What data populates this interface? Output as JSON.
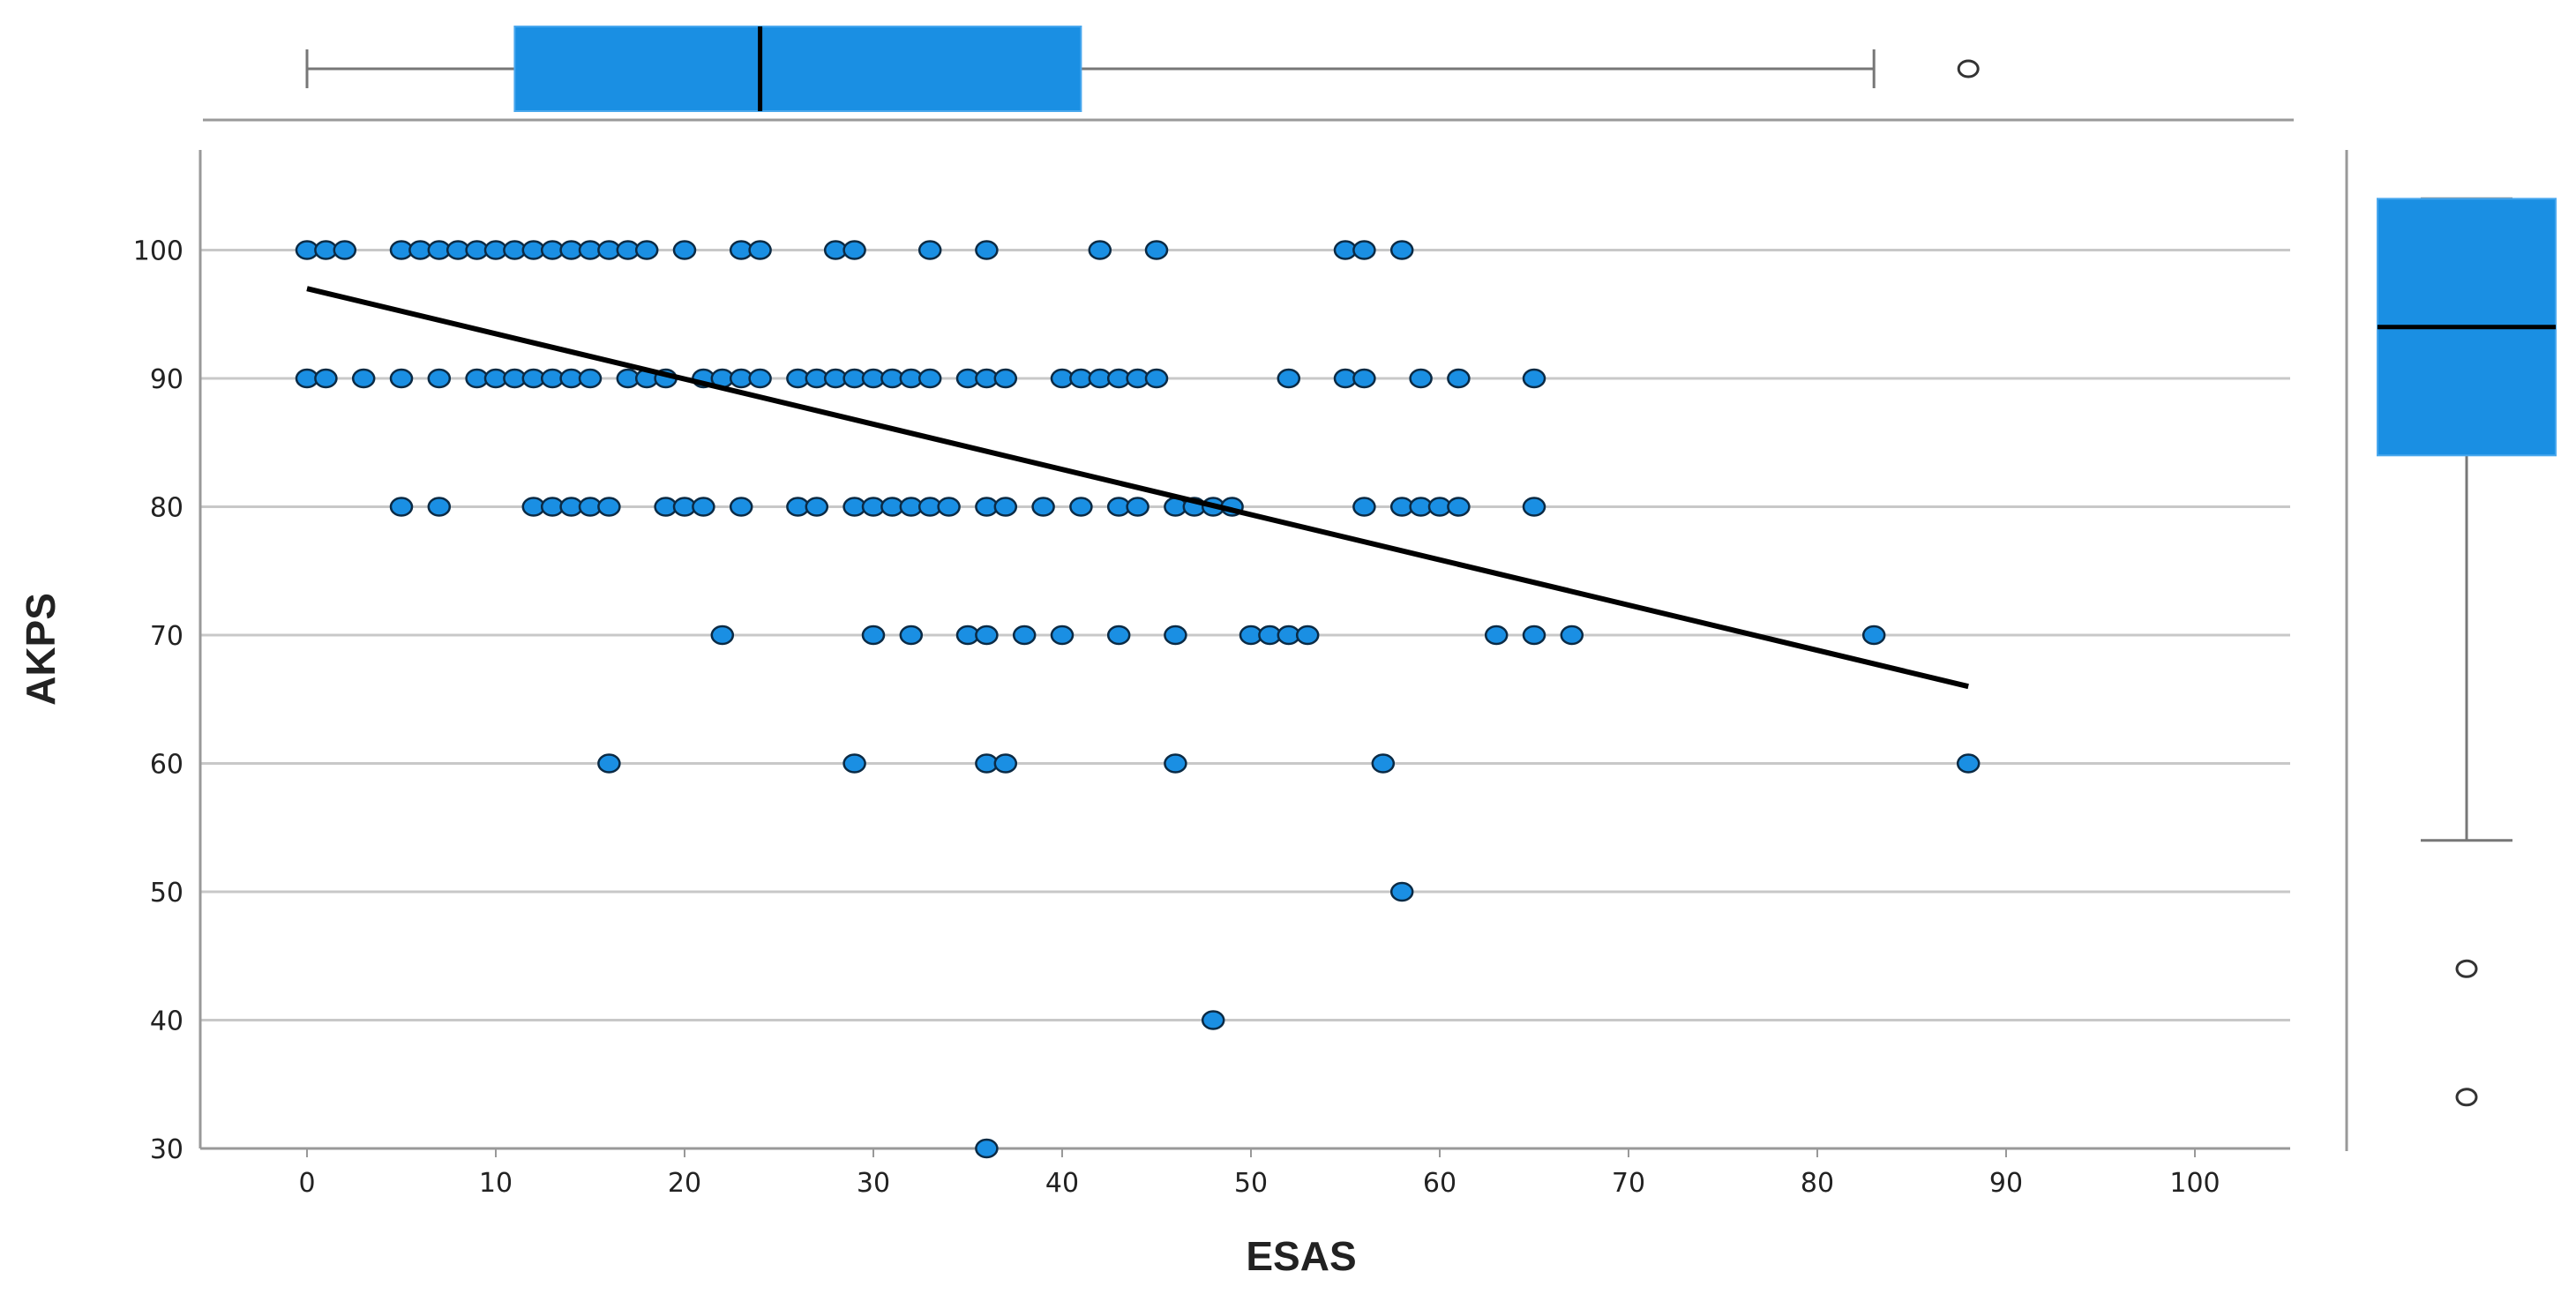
{
  "chart_data": {
    "type": "scatter",
    "xlabel": "ESAS",
    "ylabel": "AKPS",
    "xlim": [
      -11,
      100
    ],
    "ylim": [
      30,
      107
    ],
    "xticks": [
      0,
      10,
      20,
      30,
      40,
      50,
      60,
      70,
      80,
      90,
      100
    ],
    "yticks": [
      30,
      40,
      50,
      60,
      70,
      80,
      90,
      100
    ],
    "grid": "horizontal",
    "colors": {
      "point": "#1a8fe3",
      "box": "#1a8fe3",
      "line": "#000000",
      "grid": "#c8c8c8",
      "axis": "#999999"
    },
    "fit_line": {
      "x": [
        0,
        88
      ],
      "y": [
        97,
        66
      ]
    },
    "points": {
      "100": [
        0,
        1,
        2,
        5,
        6,
        7,
        8,
        9,
        10,
        11,
        12,
        13,
        14,
        15,
        16,
        17,
        18,
        20,
        23,
        24,
        28,
        29,
        33,
        36,
        42,
        45,
        55,
        56,
        58
      ],
      "90": [
        0,
        1,
        3,
        5,
        7,
        9,
        10,
        11,
        12,
        13,
        14,
        15,
        17,
        18,
        19,
        21,
        22,
        23,
        24,
        26,
        27,
        28,
        29,
        30,
        31,
        32,
        33,
        35,
        36,
        37,
        40,
        41,
        42,
        43,
        44,
        45,
        52,
        55,
        56,
        59,
        61,
        65
      ],
      "80": [
        5,
        7,
        12,
        13,
        14,
        15,
        16,
        19,
        20,
        21,
        23,
        26,
        27,
        29,
        30,
        31,
        32,
        33,
        34,
        36,
        37,
        39,
        41,
        43,
        44,
        46,
        47,
        48,
        49,
        56,
        58,
        59,
        60,
        61,
        65
      ],
      "70": [
        22,
        30,
        32,
        35,
        36,
        38,
        40,
        43,
        46,
        50,
        51,
        52,
        53,
        63,
        65,
        67,
        83
      ],
      "60": [
        16,
        29,
        36,
        37,
        46,
        57,
        88
      ],
      "50": [
        58
      ],
      "40": [
        48
      ],
      "30": [
        36
      ]
    },
    "x_boxplot": {
      "whisker_low": 0,
      "q1": 11,
      "median": 24,
      "q3": 41,
      "whisker_high": 83,
      "outliers": [
        88
      ]
    },
    "y_boxplot": {
      "whisker_low": 54,
      "q1": 84,
      "median": 94,
      "q3": 104,
      "whisker_high": 104,
      "outliers": [
        44,
        34
      ]
    }
  }
}
